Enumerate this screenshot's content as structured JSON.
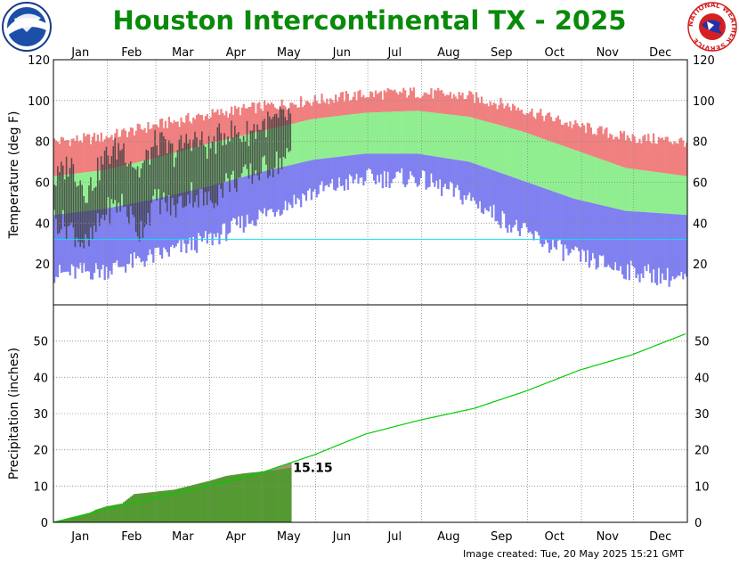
{
  "header": {
    "title": "Houston Intercontinental TX - 2025",
    "left_logo": {
      "name": "noaa-logo",
      "text": "NOAA"
    },
    "right_logo": {
      "name": "nws-logo",
      "text": "NATIONAL WEATHER SERVICE"
    }
  },
  "footer": {
    "image_created": "Image created: Tue, 20 May 2025 15:21 GMT"
  },
  "colors": {
    "record_high": "#f08080",
    "normal_range": "#90ee90",
    "record_low": "#8080f0",
    "observed": "#404040",
    "freezing_line": "#00e5ee",
    "normal_precip_line": "#00cc00",
    "observed_precip_fill": "#559933",
    "precip_surplus_fill": "#a89070",
    "grid": "#888888"
  },
  "chart_data": [
    {
      "type": "bar",
      "name": "temperature",
      "ylabel": "Temperature (deg F)",
      "ylim": [
        0,
        120
      ],
      "yticks": [
        20,
        40,
        60,
        80,
        100,
        120
      ],
      "months": [
        "Jan",
        "Feb",
        "Mar",
        "Apr",
        "May",
        "Jun",
        "Jul",
        "Aug",
        "Sep",
        "Oct",
        "Nov",
        "Dec"
      ],
      "freezing_line": 32,
      "grid": true,
      "days_in_year": 365,
      "observed_through_day": 137,
      "record_high_curve": {
        "x": [
          1,
          30,
          60,
          90,
          120,
          150,
          180,
          210,
          240,
          270,
          300,
          330,
          365
        ],
        "y": [
          80,
          82,
          88,
          93,
          97,
          100,
          103,
          104,
          102,
          96,
          88,
          82,
          80
        ]
      },
      "normal_high_curve": {
        "x": [
          1,
          30,
          60,
          90,
          120,
          150,
          180,
          210,
          240,
          270,
          300,
          330,
          365
        ],
        "y": [
          63,
          66,
          72,
          79,
          85,
          91,
          94,
          95,
          92,
          85,
          76,
          67,
          63
        ]
      },
      "normal_low_curve": {
        "x": [
          1,
          30,
          60,
          90,
          120,
          150,
          180,
          210,
          240,
          270,
          300,
          330,
          365
        ],
        "y": [
          44,
          47,
          52,
          58,
          65,
          71,
          74,
          74,
          70,
          61,
          52,
          46,
          44
        ]
      },
      "record_low_curve": {
        "x": [
          1,
          30,
          60,
          90,
          120,
          150,
          180,
          210,
          240,
          270,
          300,
          330,
          365
        ],
        "y": [
          15,
          17,
          24,
          32,
          44,
          55,
          62,
          62,
          52,
          36,
          24,
          17,
          12
        ]
      },
      "observed_high_curve": {
        "x": [
          1,
          10,
          20,
          30,
          40,
          50,
          60,
          70,
          80,
          90,
          100,
          110,
          120,
          130,
          137
        ],
        "y": [
          60,
          70,
          55,
          72,
          78,
          65,
          80,
          74,
          82,
          77,
          85,
          83,
          88,
          90,
          93
        ]
      },
      "observed_low_curve": {
        "x": [
          1,
          10,
          20,
          30,
          40,
          50,
          60,
          70,
          80,
          90,
          100,
          110,
          120,
          130,
          137
        ],
        "y": [
          42,
          38,
          28,
          45,
          50,
          36,
          52,
          47,
          55,
          50,
          60,
          62,
          66,
          70,
          72
        ]
      }
    },
    {
      "type": "line",
      "name": "precipitation",
      "ylabel": "Precipitation (inches)",
      "ylim": [
        0,
        60
      ],
      "yticks": [
        0,
        10,
        20,
        30,
        40,
        50
      ],
      "months": [
        "Jan",
        "Feb",
        "Mar",
        "Apr",
        "May",
        "Jun",
        "Jul",
        "Aug",
        "Sep",
        "Oct",
        "Nov",
        "Dec"
      ],
      "grid": true,
      "normal_cumulative": {
        "x": [
          1,
          31,
          59,
          90,
          120,
          151,
          181,
          212,
          243,
          273,
          304,
          334,
          365
        ],
        "y": [
          0,
          3.6,
          6.8,
          10.0,
          13.6,
          18.6,
          24.4,
          28.2,
          31.4,
          36.2,
          42.0,
          46.2,
          52.0
        ]
      },
      "observed_cumulative": {
        "x": [
          1,
          10,
          20,
          25,
          31,
          40,
          47,
          55,
          60,
          70,
          80,
          90,
          100,
          110,
          120,
          130,
          137
        ],
        "y": [
          0,
          1.2,
          2.3,
          3.5,
          4.4,
          5.2,
          7.8,
          8.2,
          8.5,
          9.0,
          10.2,
          11.4,
          12.8,
          13.5,
          14.0,
          14.6,
          15.15
        ]
      },
      "ytd_label": "15.15"
    }
  ]
}
